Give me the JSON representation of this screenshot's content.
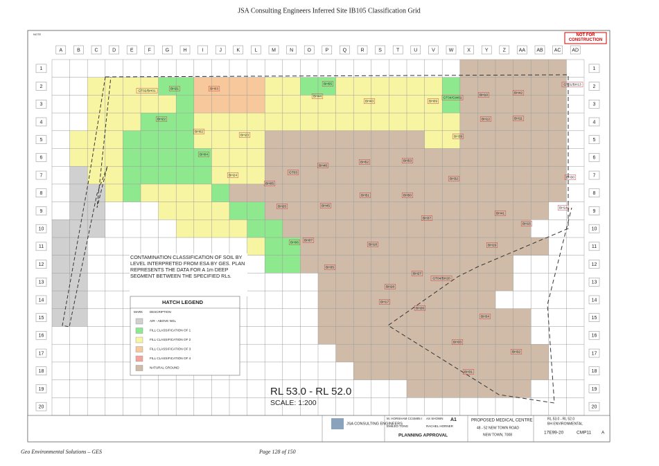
{
  "header": {
    "title": "JSA Consulting Engineers Inferred Site IB105 Classification Grid"
  },
  "stamp": "NOT FOR CONSTRUCTION",
  "grid": {
    "columns": [
      "A",
      "B",
      "C",
      "D",
      "E",
      "F",
      "G",
      "H",
      "I",
      "J",
      "K",
      "L",
      "M",
      "N",
      "O",
      "P",
      "Q",
      "R",
      "S",
      "T",
      "U",
      "V",
      "W",
      "X",
      "Y",
      "Z",
      "AA",
      "AB",
      "AC",
      "AD"
    ],
    "rows": [
      "1",
      "2",
      "3",
      "4",
      "5",
      "6",
      "7",
      "8",
      "9",
      "10",
      "11",
      "12",
      "13",
      "14",
      "15",
      "16",
      "17",
      "18",
      "19",
      "20"
    ]
  },
  "boreholes": [
    "GT02/BH01",
    "BH21",
    "BH03",
    "BH55",
    "BH44",
    "BH43",
    "BH09",
    "GT04/GW01",
    "BH10",
    "BH42",
    "GT01/BH13",
    "BH22",
    "BH12",
    "BH11",
    "BH02",
    "BH23",
    "BH39",
    "BH04",
    "BH46",
    "BH52",
    "BH53",
    "BH24",
    "GT03",
    "BH05",
    "BH32",
    "BH30",
    "BH25",
    "BH45",
    "BH51",
    "BH50",
    "BH14",
    "BH37",
    "BH41",
    "BH15",
    "BH07",
    "BH06",
    "BH18",
    "BH19",
    "BH35",
    "BH27",
    "GT04/BH20",
    "BH28",
    "BH17",
    "BH26",
    "BH34",
    "BH33",
    "BH32",
    "BH31"
  ],
  "note": "CONTAMINATION CLASSIFICATION OF SOIL BY LEVEL INTERPRETED FROM ESA BY GES. PLAN REPRESENTS THE DATA FOR A 1m DEEP SEGMENT BETWEEN THE SPECIFIED RLs.",
  "legend": {
    "title": "HATCH LEGEND",
    "headers": [
      "MARK",
      "DESCRIPTION"
    ],
    "items": [
      "AIR - ABOVE NGL",
      "FILL CLASSIFICATION OF 1",
      "FILL CLASSIFICATION OF 2",
      "FILL CLASSIFICATION OF 3",
      "FILL CLASSIFICATION OF 4",
      "NATURAL GROUND"
    ]
  },
  "level": "RL 53.0 - RL 52.0",
  "scale": "SCALE:  1:200",
  "title_block": {
    "company": "JSA CONSULTING ENGINEERS",
    "drawn": "M. HORSHAM CCSM05 I",
    "designed": "EMILEO TONG",
    "checked": "RACHEL HORNER",
    "scale": "AS SHOWN",
    "size": "A1",
    "status": "PLANNING APPROVAL",
    "project": "PROPOSED MEDICAL CENTRE",
    "address": "48 - 52 NEW TOWN ROAD",
    "suburb": "NEW TOWN, 7008",
    "sheet_title": "RL 53.0 - RL 52.0",
    "sheet_subtitle": "BH ENVIRONMENTAL",
    "project_no": "17E99-20",
    "drawing_no": "CMP11",
    "revision": "A"
  },
  "footer": {
    "left": "Geo Environmental Solutions – GES",
    "page": "Page 128 of 150"
  }
}
